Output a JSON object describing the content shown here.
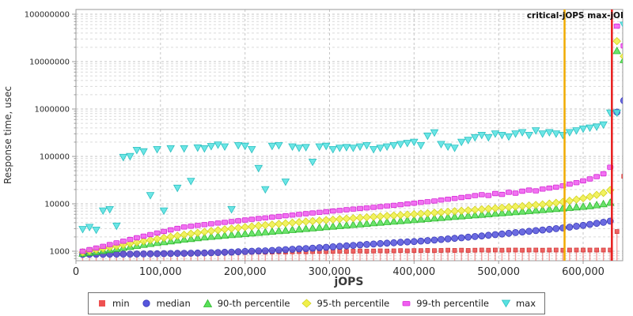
{
  "chart_data": {
    "type": "scatter",
    "title": "",
    "xlabel": "jOPS",
    "ylabel": "Response time, usec",
    "x_axis": {
      "min": 0,
      "max": 648000,
      "ticks": [
        0,
        100000,
        200000,
        300000,
        400000,
        500000,
        600000
      ],
      "tick_labels": [
        "0",
        "100,000",
        "200,000",
        "300,000",
        "400,000",
        "500,000",
        "600,000"
      ],
      "grid": true
    },
    "y_axis": {
      "scale": "log",
      "min": 631,
      "max": 126000000,
      "ticks": [
        1000,
        10000,
        100000,
        1000000,
        10000000,
        100000000
      ],
      "tick_labels": [
        "1000",
        "10000",
        "100000",
        "1000000",
        "10000000",
        "100000000"
      ],
      "grid": true
    },
    "x_points": {
      "start": 8000,
      "step": 8000,
      "count": 81
    },
    "vlines": [
      {
        "label": "critical-jOPS",
        "x": 578000,
        "color": "#f0ab00"
      },
      {
        "label": "max-jOPS",
        "x": 634000,
        "color": "#e81c1c"
      }
    ],
    "legend_position": "bottom",
    "colors": {
      "min": "#ee5151",
      "median": "#5656dd",
      "p90": "#58e058",
      "p95": "#f0f04a",
      "p99": "#f05ef0",
      "max": "#58e2e2",
      "grid_major": "#c6c6c6",
      "grid_minor": "#dadada",
      "axis": "#9a9a9a"
    },
    "series": [
      {
        "name": "min",
        "marker": "square-stem",
        "color": "#ee5151",
        "stroke": "#d03a3a",
        "values": [
          860,
          870,
          860,
          880,
          870,
          880,
          890,
          880,
          890,
          900,
          900,
          890,
          910,
          900,
          920,
          910,
          900,
          920,
          930,
          920,
          930,
          940,
          930,
          950,
          940,
          950,
          960,
          950,
          960,
          970,
          960,
          970,
          980,
          970,
          980,
          990,
          980,
          990,
          1000,
          990,
          1000,
          1010,
          1000,
          1010,
          1020,
          1010,
          1020,
          1030,
          1020,
          1030,
          1030,
          1040,
          1030,
          1040,
          1050,
          1040,
          1050,
          1040,
          1050,
          1060,
          1050,
          1060,
          1050,
          1060,
          1060,
          1050,
          1060,
          1060,
          1050,
          1060,
          1060,
          1050,
          1060,
          1060,
          1060,
          1060,
          1060,
          1060,
          1060,
          2600,
          38000
        ]
      },
      {
        "name": "median",
        "marker": "circle",
        "color": "#5656dd",
        "stroke": "#3a3ab8",
        "values": [
          858,
          860,
          862,
          860,
          865,
          868,
          870,
          872,
          875,
          878,
          880,
          885,
          890,
          895,
          900,
          905,
          910,
          915,
          920,
          930,
          940,
          950,
          960,
          975,
          990,
          1000,
          1010,
          1020,
          1040,
          1060,
          1080,
          1100,
          1120,
          1140,
          1160,
          1190,
          1210,
          1240,
          1270,
          1300,
          1330,
          1360,
          1390,
          1420,
          1450,
          1480,
          1510,
          1540,
          1570,
          1600,
          1640,
          1680,
          1720,
          1770,
          1820,
          1870,
          1920,
          1980,
          2040,
          2100,
          2170,
          2240,
          2310,
          2390,
          2470,
          2550,
          2630,
          2720,
          2810,
          2900,
          3000,
          3100,
          3220,
          3360,
          3510,
          3680,
          3870,
          4080,
          4320,
          860000,
          1500000
        ]
      },
      {
        "name": "90-th percentile",
        "marker": "triangle-up",
        "color": "#58e058",
        "stroke": "#2eb82e",
        "values": [
          900,
          940,
          980,
          1030,
          1080,
          1140,
          1200,
          1260,
          1320,
          1390,
          1450,
          1520,
          1580,
          1650,
          1720,
          1790,
          1850,
          1920,
          1990,
          2050,
          2110,
          2170,
          2230,
          2290,
          2350,
          2420,
          2480,
          2550,
          2620,
          2700,
          2770,
          2850,
          2930,
          3010,
          3090,
          3180,
          3270,
          3360,
          3450,
          3550,
          3650,
          3750,
          3850,
          3960,
          4070,
          4180,
          4290,
          4400,
          4510,
          4630,
          4750,
          4870,
          5000,
          5130,
          5260,
          5400,
          5540,
          5680,
          5830,
          5980,
          6130,
          6290,
          6450,
          6620,
          6790,
          6970,
          7150,
          7340,
          7530,
          7730,
          7930,
          8140,
          8360,
          8580,
          8810,
          9100,
          9500,
          10000,
          10700,
          17000000,
          11000000
        ]
      },
      {
        "name": "95-th percentile",
        "marker": "diamond",
        "color": "#f0f04a",
        "stroke": "#d2d21e",
        "values": [
          950,
          1010,
          1070,
          1140,
          1210,
          1290,
          1370,
          1450,
          1540,
          1630,
          1720,
          1820,
          1920,
          2020,
          2120,
          2230,
          2340,
          2450,
          2560,
          2670,
          2780,
          2890,
          3000,
          3110,
          3220,
          3330,
          3440,
          3550,
          3660,
          3770,
          3880,
          3990,
          4100,
          4210,
          4320,
          4430,
          4540,
          4650,
          4760,
          4870,
          4980,
          5090,
          5200,
          5310,
          5430,
          5550,
          5670,
          5800,
          5930,
          6060,
          6200,
          6340,
          6490,
          6640,
          6800,
          6960,
          7130,
          7300,
          7480,
          7670,
          7860,
          8060,
          8270,
          8490,
          8720,
          8960,
          9210,
          9470,
          9740,
          10100,
          10500,
          11000,
          11600,
          12300,
          13100,
          14100,
          15400,
          17000,
          19500,
          27000000,
          13000000
        ]
      },
      {
        "name": "99-th percentile",
        "marker": "square",
        "color": "#f05ef0",
        "stroke": "#d428d4",
        "values": [
          1000,
          1080,
          1170,
          1270,
          1380,
          1500,
          1630,
          1770,
          1920,
          2080,
          2250,
          2430,
          2620,
          2820,
          3030,
          3250,
          3380,
          3510,
          3650,
          3790,
          3930,
          4080,
          4230,
          4390,
          4550,
          4720,
          4890,
          5060,
          5240,
          5420,
          5610,
          5800,
          6000,
          6200,
          6400,
          6610,
          6820,
          7040,
          7260,
          7490,
          7720,
          7960,
          8200,
          8450,
          8700,
          9000,
          9300,
          9600,
          9950,
          10300,
          10700,
          11100,
          11500,
          12000,
          12500,
          13000,
          13600,
          14200,
          14900,
          15600,
          15000,
          16500,
          15800,
          17500,
          16800,
          18500,
          19500,
          18800,
          20500,
          21500,
          22500,
          24000,
          26000,
          28000,
          30500,
          33500,
          37500,
          43000,
          59000,
          56000000,
          21500000
        ]
      },
      {
        "name": "max",
        "marker": "triangle-down",
        "color": "#58e2e2",
        "stroke": "#2cc0c0",
        "values": [
          2900,
          3200,
          2800,
          7100,
          7600,
          3400,
          96000,
          100000,
          135000,
          126000,
          15000,
          140000,
          7100,
          146000,
          21500,
          146000,
          30000,
          152000,
          146000,
          163000,
          175000,
          160000,
          7600,
          170000,
          165000,
          140000,
          56000,
          20000,
          165000,
          170000,
          29000,
          160000,
          150000,
          155000,
          76000,
          160000,
          165000,
          140000,
          150000,
          155000,
          150000,
          160000,
          170000,
          140000,
          150000,
          160000,
          170000,
          180000,
          190000,
          200000,
          170000,
          270000,
          316000,
          180000,
          160000,
          150000,
          200000,
          220000,
          250000,
          280000,
          250000,
          300000,
          280000,
          260000,
          300000,
          320000,
          280000,
          350000,
          300000,
          320000,
          300000,
          280000,
          320000,
          350000,
          380000,
          400000,
          420000,
          465000,
          830000,
          830000,
          59000000
        ]
      }
    ]
  }
}
